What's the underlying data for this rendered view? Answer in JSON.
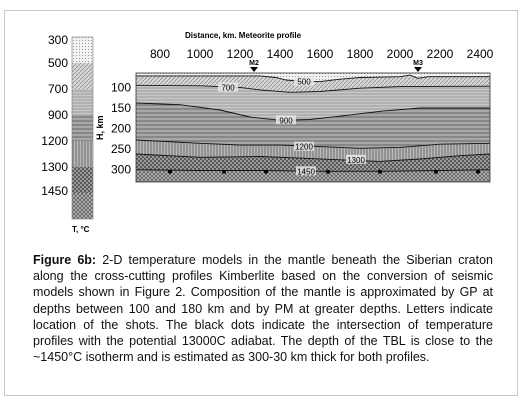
{
  "chart_data": {
    "type": "heatmap",
    "title": "Distance, km. Meteorite profile",
    "xlabel": "Distance, km. Meteorite profile",
    "ylabel": "H, km",
    "x_ticks": [
      800,
      1000,
      1200,
      1400,
      1600,
      1800,
      2000,
      2200,
      2400
    ],
    "y_ticks": [
      100,
      150,
      200,
      250,
      300
    ],
    "xlim": [
      680,
      2450
    ],
    "ylim": [
      65,
      330
    ],
    "colorbar": {
      "label": "T, °C",
      "ticks": [
        300,
        500,
        700,
        900,
        1200,
        1300,
        1450
      ]
    },
    "shots": [
      {
        "label": "M2",
        "x": 1270
      },
      {
        "label": "M3",
        "x": 2090
      }
    ],
    "isotherms": [
      {
        "label": "500",
        "label_x": 1520,
        "points": [
          [
            680,
            72
          ],
          [
            1000,
            72
          ],
          [
            1300,
            72
          ],
          [
            1380,
            76
          ],
          [
            1430,
            82
          ],
          [
            1520,
            86
          ],
          [
            1600,
            86
          ],
          [
            1700,
            80
          ],
          [
            1800,
            76
          ],
          [
            2000,
            74
          ],
          [
            2050,
            70
          ],
          [
            2090,
            78
          ],
          [
            2140,
            74
          ],
          [
            2450,
            74
          ]
        ]
      },
      {
        "label": "700",
        "label_x": 1140,
        "points": [
          [
            680,
            95
          ],
          [
            1000,
            96
          ],
          [
            1200,
            100
          ],
          [
            1300,
            106
          ],
          [
            1450,
            112
          ],
          [
            1600,
            110
          ],
          [
            1800,
            102
          ],
          [
            2000,
            98
          ],
          [
            2450,
            97
          ]
        ]
      },
      {
        "label": "900",
        "label_x": 1430,
        "points": [
          [
            680,
            138
          ],
          [
            900,
            142
          ],
          [
            1100,
            155
          ],
          [
            1250,
            172
          ],
          [
            1400,
            180
          ],
          [
            1550,
            178
          ],
          [
            1700,
            170
          ],
          [
            1900,
            158
          ],
          [
            2100,
            150
          ],
          [
            2450,
            150
          ]
        ]
      },
      {
        "label": "1200",
        "label_x": 1520,
        "points": [
          [
            680,
            228
          ],
          [
            1000,
            236
          ],
          [
            1200,
            240
          ],
          [
            1400,
            240
          ],
          [
            1600,
            244
          ],
          [
            1800,
            248
          ],
          [
            2000,
            246
          ],
          [
            2200,
            238
          ],
          [
            2450,
            236
          ]
        ]
      },
      {
        "label": "1300",
        "label_x": 1780,
        "points": [
          [
            680,
            262
          ],
          [
            1000,
            270
          ],
          [
            1300,
            268
          ],
          [
            1500,
            272
          ],
          [
            1700,
            276
          ],
          [
            1900,
            280
          ],
          [
            2100,
            274
          ],
          [
            2300,
            266
          ],
          [
            2450,
            262
          ]
        ]
      },
      {
        "label": "1450",
        "label_x": 1530,
        "points": [
          [
            680,
            300
          ],
          [
            1000,
            302
          ],
          [
            1300,
            302
          ],
          [
            1600,
            304
          ],
          [
            1900,
            304
          ],
          [
            2200,
            302
          ],
          [
            2450,
            300
          ]
        ]
      }
    ],
    "tbl_dots": [
      {
        "x": 850,
        "depth": 305
      },
      {
        "x": 1120,
        "depth": 305
      },
      {
        "x": 1330,
        "depth": 305
      },
      {
        "x": 1640,
        "depth": 305
      },
      {
        "x": 1900,
        "depth": 305
      },
      {
        "x": 2180,
        "depth": 305
      },
      {
        "x": 2390,
        "depth": 305
      }
    ]
  },
  "caption": {
    "label": "Figure 6b:",
    "text": " 2-D temperature models in the mantle beneath the Siberian craton along the cross-cutting profiles Kimberlite based on the conversion of seismic models shown in Figure 2. Composition of the mantle is approximated by GP at depths between 100 and 180 km and by PM at greater depths. Letters indicate location of the shots. The black dots indicate the intersection of temperature profiles with the potential 13000C adiabat. The depth of the TBL is close to the ~1450°C isotherm and is estimated as 300-30 km thick for both profiles."
  }
}
